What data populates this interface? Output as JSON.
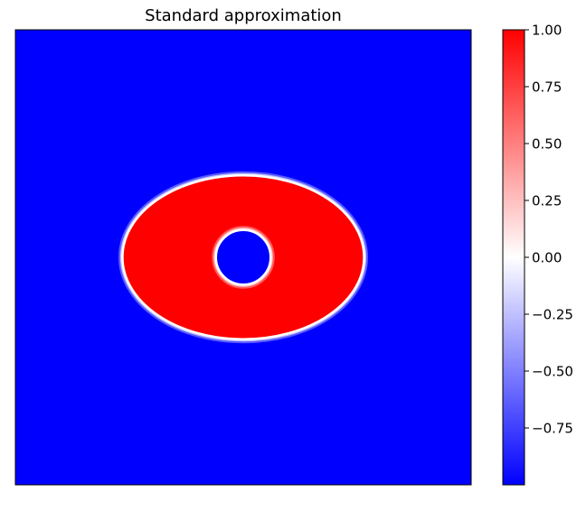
{
  "chart_data": {
    "type": "heatmap",
    "title": "Standard approximation",
    "xlabel": "",
    "ylabel": "",
    "axis_ticks_shown": false,
    "grid": false,
    "colormap": "bwr",
    "colorbar": {
      "range": [
        -1.0,
        1.0
      ],
      "ticks": [
        1.0,
        0.75,
        0.5,
        0.25,
        0.0,
        -0.25,
        -0.5,
        -0.75
      ],
      "tick_labels": [
        "1.00",
        "0.75",
        "0.50",
        "0.25",
        "0.00",
        "−0.25",
        "−0.50",
        "−0.75"
      ],
      "placement": "right"
    },
    "field": {
      "background_value": -1.0,
      "interface_value": 0.0,
      "shapes": [
        {
          "name": "outer ellipse",
          "inside_value": 1.0,
          "center": [
            0.5,
            0.5
          ],
          "semi_axis_x": 0.265,
          "semi_axis_y": 0.18
        },
        {
          "name": "inner circle",
          "inside_value": -1.0,
          "center": [
            0.5,
            0.5
          ],
          "radius": 0.06
        }
      ]
    }
  },
  "colors": {
    "min": "#0000ff",
    "mid": "#ffffff",
    "max": "#ff0000",
    "frame": "#000000"
  }
}
